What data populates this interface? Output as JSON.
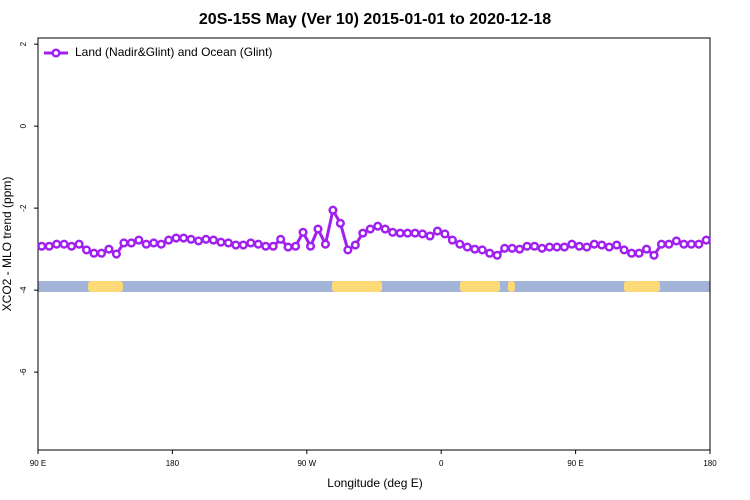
{
  "chart_data": {
    "type": "line",
    "title": "20S-15S May (Ver 10)   2015-01-01 to 2020-12-18",
    "xlabel": "Longitude (deg E)",
    "ylabel": "XCO2 - MLO trend (ppm)",
    "xlim": [
      90,
      540
    ],
    "ylim": [
      -7.9,
      2.15
    ],
    "xticks": [
      {
        "value": 90,
        "label": "90 E"
      },
      {
        "value": 180,
        "label": "180"
      },
      {
        "value": 270,
        "label": "90 W"
      },
      {
        "value": 360,
        "label": "0"
      },
      {
        "value": 450,
        "label": "90 E"
      },
      {
        "value": 540,
        "label": "180"
      }
    ],
    "yticks": [
      2,
      0,
      -2,
      -4,
      -6
    ],
    "legend": "upper left",
    "x": [
      92.5,
      97.5,
      102.5,
      107.5,
      112.5,
      117.5,
      122.5,
      127.5,
      132.5,
      137.5,
      142.5,
      147.5,
      152.5,
      157.5,
      162.5,
      167.5,
      172.5,
      177.5,
      182.5,
      187.5,
      192.5,
      197.5,
      202.5,
      207.5,
      212.5,
      217.5,
      222.5,
      227.5,
      232.5,
      237.5,
      242.5,
      247.5,
      252.5,
      257.5,
      262.5,
      267.5,
      272.5,
      277.5,
      282.5,
      287.5,
      292.5,
      297.5,
      302.5,
      307.5,
      312.5,
      317.5,
      322.5,
      327.5,
      332.5,
      337.5,
      342.5,
      347.5,
      352.5,
      357.5,
      362.5,
      367.5,
      372.5,
      377.5,
      382.5,
      387.5,
      392.5,
      397.5,
      402.5,
      407.5,
      412.5,
      417.5,
      422.5,
      427.5,
      432.5,
      437.5,
      442.5,
      447.5,
      452.5,
      457.5,
      462.5,
      467.5,
      472.5,
      477.5,
      482.5,
      487.5,
      492.5,
      497.5,
      502.5,
      507.5,
      512.5,
      517.5,
      522.5,
      527.5,
      532.5,
      537.5
    ],
    "series": [
      {
        "name": "Land (Nadir&Glint) and Ocean (Glint)",
        "color": "#a020f0",
        "values": [
          -2.93,
          -2.93,
          -2.88,
          -2.88,
          -2.93,
          -2.88,
          -3.02,
          -3.1,
          -3.1,
          -3.0,
          -3.12,
          -2.85,
          -2.85,
          -2.78,
          -2.88,
          -2.85,
          -2.88,
          -2.78,
          -2.73,
          -2.73,
          -2.76,
          -2.8,
          -2.76,
          -2.78,
          -2.83,
          -2.85,
          -2.9,
          -2.9,
          -2.85,
          -2.88,
          -2.93,
          -2.93,
          -2.76,
          -2.95,
          -2.93,
          -2.59,
          -2.93,
          -2.51,
          -2.88,
          -2.05,
          -2.37,
          -3.02,
          -2.9,
          -2.61,
          -2.51,
          -2.44,
          -2.51,
          -2.59,
          -2.61,
          -2.61,
          -2.61,
          -2.63,
          -2.68,
          -2.56,
          -2.63,
          -2.78,
          -2.88,
          -2.95,
          -3.0,
          -3.02,
          -3.1,
          -3.15,
          -2.98,
          -2.98,
          -3.0,
          -2.93,
          -2.93,
          -2.98,
          -2.95,
          -2.95,
          -2.95,
          -2.88,
          -2.93,
          -2.95,
          -2.88,
          -2.9,
          -2.95,
          -2.9,
          -3.02,
          -3.1,
          -3.1,
          -3.0,
          -3.15,
          -2.88,
          -2.88,
          -2.8,
          -2.88,
          -2.88,
          -2.88,
          -2.78
        ]
      }
    ],
    "surface": {
      "ocean_color": "#a2b5d8",
      "land_color": "#fdd978",
      "land_ranges": [
        [
          123.5,
          146.9
        ],
        [
          286.9,
          320.4
        ],
        [
          372.6,
          399.4
        ],
        [
          404.7,
          409.4
        ],
        [
          482.4,
          506.5
        ]
      ]
    }
  }
}
